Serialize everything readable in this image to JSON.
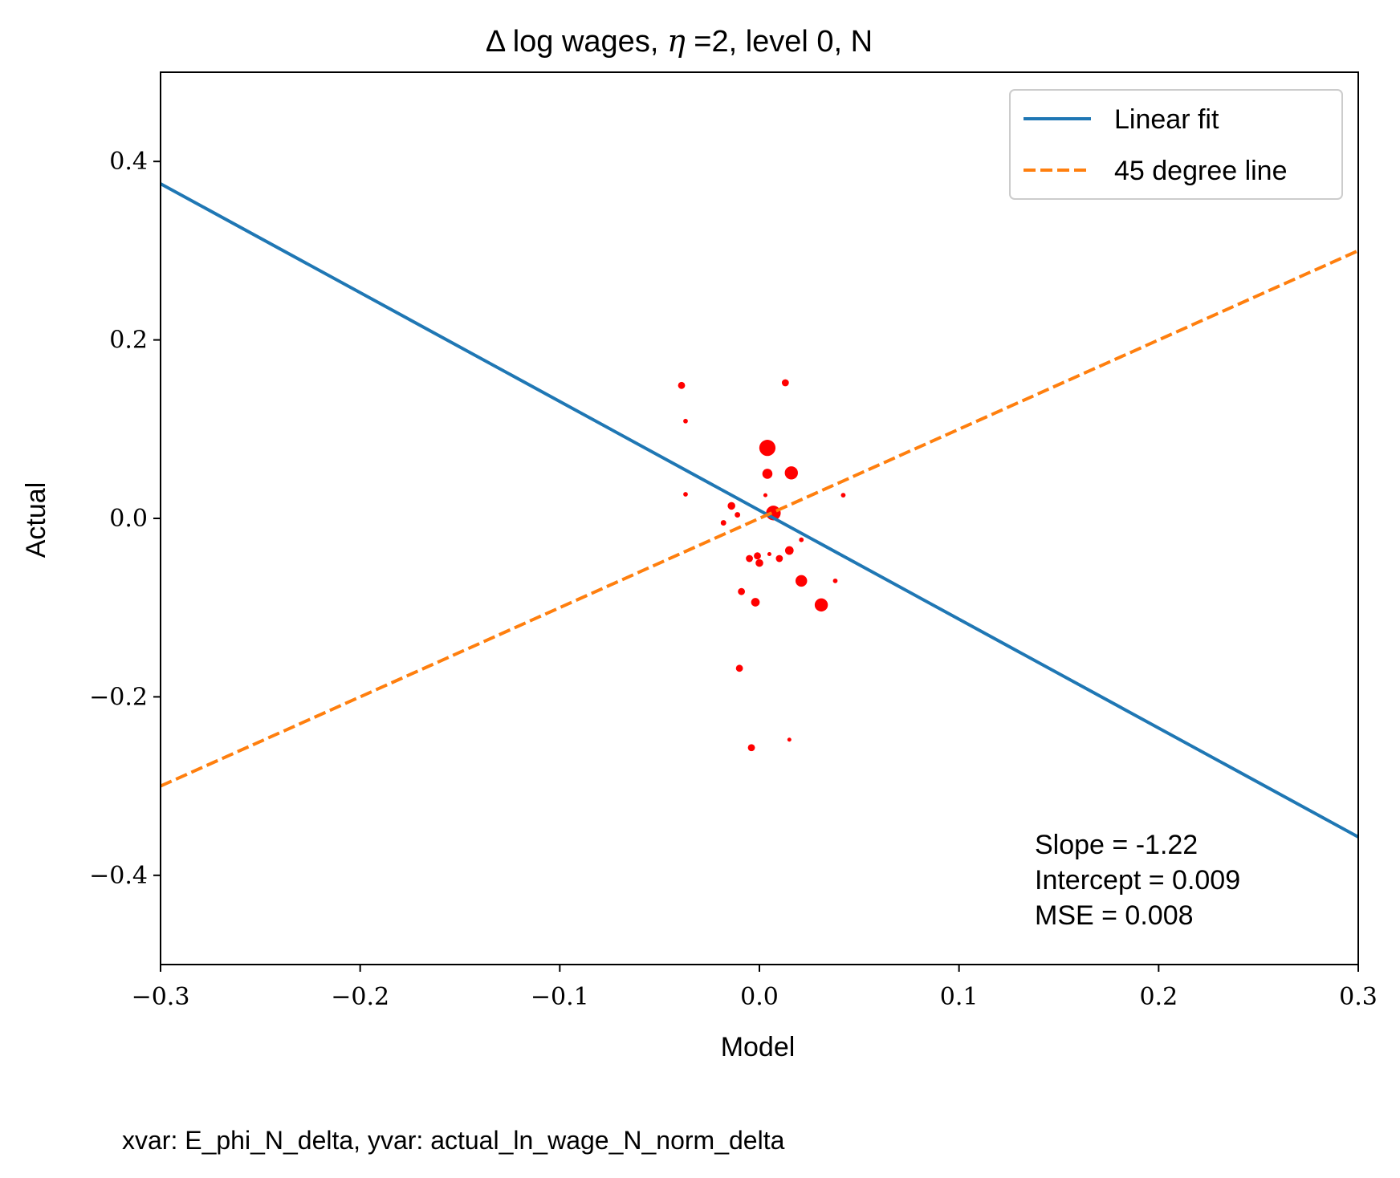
{
  "chart_data": {
    "type": "scatter",
    "title": {
      "prefix": "Δ log wages, ",
      "symbol": "η",
      "suffix": " =2, level 0, N"
    },
    "xlabel": "Model",
    "ylabel": "Actual",
    "xlim": [
      -0.3,
      0.3
    ],
    "ylim": [
      -0.5,
      0.5
    ],
    "xticks": [
      -0.3,
      -0.2,
      -0.1,
      0.0,
      0.1,
      0.2,
      0.3
    ],
    "yticks": [
      -0.4,
      -0.2,
      0.0,
      0.2,
      0.4
    ],
    "tick_labels_x": [
      "−0.3",
      "−0.2",
      "−0.1",
      "0.0",
      "0.1",
      "0.2",
      "0.3"
    ],
    "tick_labels_y": [
      "−0.4",
      "−0.2",
      "0.0",
      "0.2",
      "0.4"
    ],
    "grid": false,
    "legend_position": "top-right",
    "colors": {
      "points": "#ff0000",
      "linear_fit": "#1f77b4",
      "degree_45": "#ff7f0e"
    },
    "lines": [
      {
        "name": "Linear fit",
        "style": "solid",
        "slope": -1.22,
        "intercept": 0.009
      },
      {
        "name": "45 degree line",
        "style": "dashed",
        "slope": 1.0,
        "intercept": 0.0
      }
    ],
    "annotation": [
      "Slope = -1.22",
      "Intercept = 0.009",
      "MSE = 0.008"
    ],
    "footer": "xvar: E_phi_N_delta, yvar: actual_ln_wage_N_norm_delta",
    "points": [
      {
        "x": -0.039,
        "y": 0.149,
        "weight": 2.0
      },
      {
        "x": -0.037,
        "y": 0.109,
        "weight": 1.2
      },
      {
        "x": -0.037,
        "y": 0.027,
        "weight": 1.2
      },
      {
        "x": 0.013,
        "y": 0.152,
        "weight": 2.0
      },
      {
        "x": 0.004,
        "y": 0.079,
        "weight": 5.0
      },
      {
        "x": 0.004,
        "y": 0.05,
        "weight": 3.0
      },
      {
        "x": 0.016,
        "y": 0.051,
        "weight": 4.0
      },
      {
        "x": 0.003,
        "y": 0.026,
        "weight": 1.0
      },
      {
        "x": 0.042,
        "y": 0.026,
        "weight": 1.2
      },
      {
        "x": -0.014,
        "y": 0.014,
        "weight": 2.2
      },
      {
        "x": -0.011,
        "y": 0.004,
        "weight": 1.5
      },
      {
        "x": -0.018,
        "y": -0.005,
        "weight": 1.5
      },
      {
        "x": 0.007,
        "y": 0.006,
        "weight": 4.5
      },
      {
        "x": 0.021,
        "y": -0.024,
        "weight": 1.2
      },
      {
        "x": 0.015,
        "y": -0.036,
        "weight": 2.5
      },
      {
        "x": 0.005,
        "y": -0.04,
        "weight": 1.0
      },
      {
        "x": 0.01,
        "y": -0.045,
        "weight": 2.0
      },
      {
        "x": -0.001,
        "y": -0.042,
        "weight": 2.0
      },
      {
        "x": -0.005,
        "y": -0.045,
        "weight": 2.0
      },
      {
        "x": 0.0,
        "y": -0.05,
        "weight": 2.2
      },
      {
        "x": 0.021,
        "y": -0.07,
        "weight": 3.5
      },
      {
        "x": 0.038,
        "y": -0.07,
        "weight": 1.2
      },
      {
        "x": -0.009,
        "y": -0.082,
        "weight": 2.0
      },
      {
        "x": -0.002,
        "y": -0.094,
        "weight": 2.5
      },
      {
        "x": 0.031,
        "y": -0.097,
        "weight": 4.0
      },
      {
        "x": -0.01,
        "y": -0.168,
        "weight": 2.0
      },
      {
        "x": -0.004,
        "y": -0.257,
        "weight": 2.0
      },
      {
        "x": 0.015,
        "y": -0.248,
        "weight": 1.0
      }
    ]
  }
}
